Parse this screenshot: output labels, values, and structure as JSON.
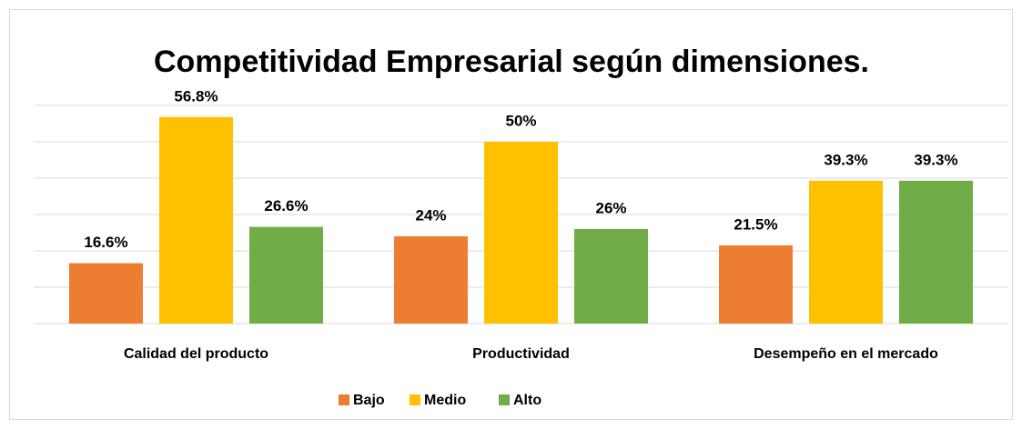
{
  "chart_data": {
    "type": "bar",
    "title": "Competitividad Empresarial según dimensiones.",
    "categories": [
      "Calidad del producto",
      "Productividad",
      "Desempeño en el mercado"
    ],
    "series": [
      {
        "name": "Bajo",
        "color": "#ed7d31",
        "values": [
          16.6,
          24,
          21.5
        ],
        "value_labels": [
          "16.6%",
          "24%",
          "21.5%"
        ]
      },
      {
        "name": "Medio",
        "color": "#ffc000",
        "values": [
          56.8,
          50,
          39.3
        ],
        "value_labels": [
          "56.8%",
          "50%",
          "39.3%"
        ]
      },
      {
        "name": "Alto",
        "color": "#70ad47",
        "values": [
          26.6,
          26,
          39.3
        ],
        "value_labels": [
          "26.6%",
          "26%",
          "39.3%"
        ]
      }
    ],
    "ylim": [
      0,
      60
    ],
    "yticks": [
      0,
      10,
      20,
      30,
      40,
      50,
      60
    ],
    "grid": true,
    "legend": "bottom"
  }
}
